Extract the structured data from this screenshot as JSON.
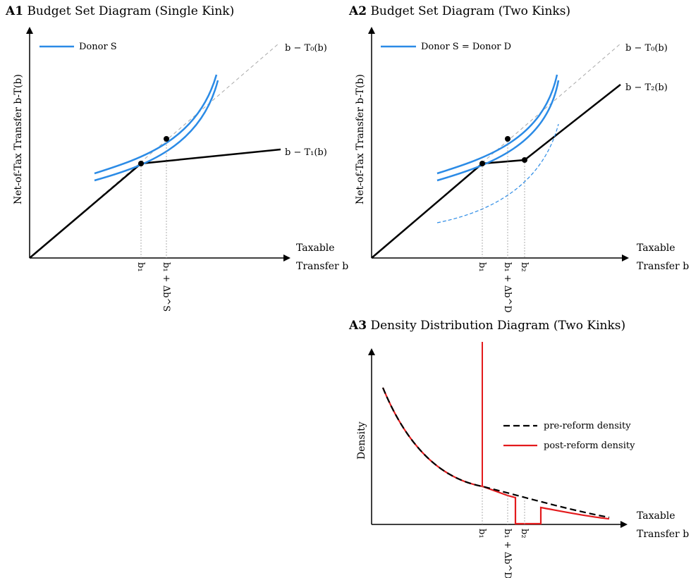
{
  "panels": {
    "a1": {
      "tag": "A1",
      "title": "Budget Set Diagram (Single Kink)",
      "ylabel": "Net-of-Tax Transfer b-T(b)",
      "xlabel_line1": "Taxable",
      "xlabel_line2": "Transfer b",
      "legend": "Donor S",
      "line_t0": "b − T₀(b)",
      "line_t1": "b − T₁(b)",
      "tick_b1": "b₁",
      "tick_b1_delta": "b₁ + Δb^S"
    },
    "a2": {
      "tag": "A2",
      "title": "Budget Set Diagram (Two Kinks)",
      "ylabel": "Net-of-Tax Transfer b-T(b)",
      "xlabel_line1": "Taxable",
      "xlabel_line2": "Transfer b",
      "legend": "Donor S = Donor D",
      "line_t0": "b − T₀(b)",
      "line_t2": "b − T₂(b)",
      "tick_b1": "b₁",
      "tick_b1_delta": "b₁ + Δb^D",
      "tick_b2": "b₂"
    },
    "a3": {
      "tag": "A3",
      "title": "Density Distribution Diagram (Two Kinks)",
      "ylabel": "Density",
      "xlabel_line1": "Taxable",
      "xlabel_line2": "Transfer b",
      "legend_pre": "pre-reform density",
      "legend_post": "post-reform density",
      "tick_b1": "b₁",
      "tick_b1_delta": "b₁ + Δb^D",
      "tick_b2": "b₂"
    }
  },
  "colors": {
    "indifference": "#2b8be6",
    "kinked_line": "#000000",
    "reference_line": "#a9a9a9",
    "post_density": "#e31a1c",
    "pre_density": "#000000"
  }
}
